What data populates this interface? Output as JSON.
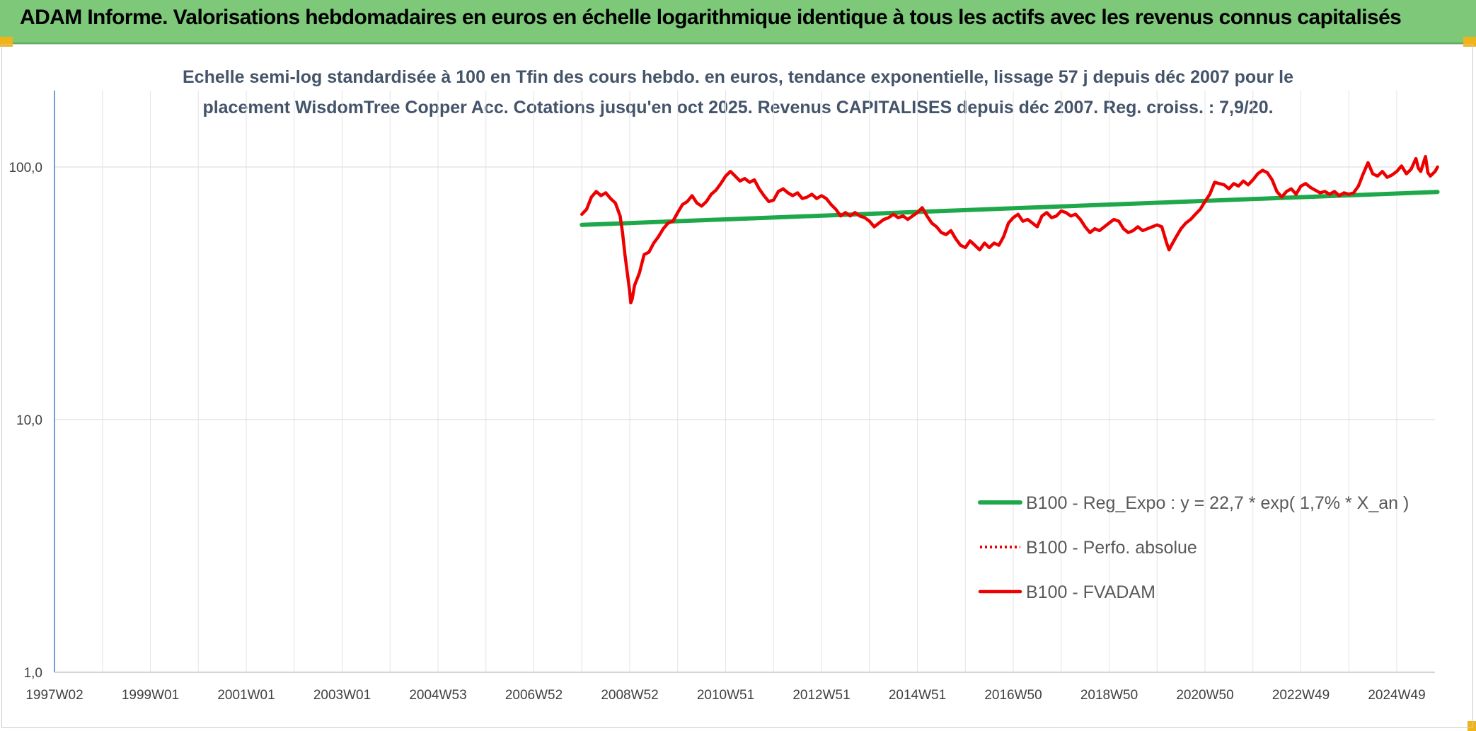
{
  "header": {
    "title": "ADAM Informe. Valorisations hebdomadaires en euros en échelle logarithmique identique à tous les actifs avec les revenus connus capitalisés"
  },
  "colors": {
    "banner": "#7ec87a",
    "accent_corner": "#f0b418",
    "fvadam": "#ee0000",
    "reg_expo": "#1ea84a",
    "perfo": "#ee0000",
    "subtitle": "#44546a"
  },
  "chart_data": {
    "type": "line",
    "title_line1": "Echelle semi-log standardisée à 100 en Tfin des cours hebdo. en euros, tendance exponentielle, lissage 57 j depuis déc 2007 pour le",
    "title_line2": "placement WisdomTree Copper Acc. Cotations jusqu'en oct 2025. Revenus CAPITALISES depuis déc 2007. Reg. croiss. : 7,9/20.",
    "y_scale": "log",
    "ylim": [
      1,
      200
    ],
    "y_ticks": [
      {
        "value": 1,
        "label": "1,0"
      },
      {
        "value": 10,
        "label": "10,0"
      },
      {
        "value": 100,
        "label": "100,0"
      }
    ],
    "xlim": [
      1997.0,
      2025.85
    ],
    "x_ticks": [
      {
        "value": 1997.0,
        "label": "1997W02"
      },
      {
        "value": 1999.0,
        "label": "1999W01"
      },
      {
        "value": 2001.0,
        "label": "2001W01"
      },
      {
        "value": 2003.0,
        "label": "2003W01"
      },
      {
        "value": 2005.0,
        "label": "2004W53"
      },
      {
        "value": 2007.0,
        "label": "2006W52"
      },
      {
        "value": 2009.0,
        "label": "2008W52"
      },
      {
        "value": 2011.0,
        "label": "2010W51"
      },
      {
        "value": 2013.0,
        "label": "2012W51"
      },
      {
        "value": 2015.0,
        "label": "2014W51"
      },
      {
        "value": 2017.0,
        "label": "2016W50"
      },
      {
        "value": 2019.0,
        "label": "2018W50"
      },
      {
        "value": 2021.0,
        "label": "2020W50"
      },
      {
        "value": 2023.0,
        "label": "2022W49"
      },
      {
        "value": 2025.0,
        "label": "2024W49"
      }
    ],
    "grid": true,
    "legend_position": "bottom-right",
    "series": [
      {
        "name": "B100 - Reg_Expo : y = 22,7 * exp( 1,7% *  X_an )",
        "style": "solid-thick",
        "points": [
          [
            2008.0,
            59.0
          ],
          [
            2025.85,
            79.7
          ]
        ]
      },
      {
        "name": "B100 - Perfo. absolue",
        "style": "dotted",
        "points": []
      },
      {
        "name": "B100 - FVADAM",
        "style": "solid",
        "points": [
          [
            2008.0,
            65
          ],
          [
            2008.1,
            68
          ],
          [
            2008.2,
            76
          ],
          [
            2008.3,
            80
          ],
          [
            2008.4,
            77
          ],
          [
            2008.5,
            79
          ],
          [
            2008.6,
            75
          ],
          [
            2008.7,
            72
          ],
          [
            2008.8,
            64
          ],
          [
            2008.85,
            55
          ],
          [
            2008.9,
            45
          ],
          [
            2008.95,
            38
          ],
          [
            2009.0,
            32
          ],
          [
            2009.02,
            29
          ],
          [
            2009.05,
            30
          ],
          [
            2009.1,
            34
          ],
          [
            2009.2,
            38
          ],
          [
            2009.3,
            45
          ],
          [
            2009.4,
            46
          ],
          [
            2009.5,
            50
          ],
          [
            2009.6,
            53
          ],
          [
            2009.7,
            57
          ],
          [
            2009.8,
            60
          ],
          [
            2009.9,
            61
          ],
          [
            2010.0,
            66
          ],
          [
            2010.1,
            71
          ],
          [
            2010.2,
            73
          ],
          [
            2010.3,
            77
          ],
          [
            2010.4,
            72
          ],
          [
            2010.5,
            70
          ],
          [
            2010.6,
            73
          ],
          [
            2010.7,
            78
          ],
          [
            2010.8,
            81
          ],
          [
            2010.9,
            86
          ],
          [
            2011.0,
            92
          ],
          [
            2011.1,
            96
          ],
          [
            2011.2,
            92
          ],
          [
            2011.3,
            88
          ],
          [
            2011.4,
            90
          ],
          [
            2011.5,
            87
          ],
          [
            2011.6,
            89
          ],
          [
            2011.7,
            82
          ],
          [
            2011.8,
            77
          ],
          [
            2011.9,
            73
          ],
          [
            2012.0,
            74
          ],
          [
            2012.1,
            80
          ],
          [
            2012.2,
            82
          ],
          [
            2012.3,
            79
          ],
          [
            2012.4,
            77
          ],
          [
            2012.5,
            79
          ],
          [
            2012.6,
            75
          ],
          [
            2012.7,
            76
          ],
          [
            2012.8,
            78
          ],
          [
            2012.9,
            75
          ],
          [
            2013.0,
            77
          ],
          [
            2013.1,
            75
          ],
          [
            2013.2,
            71
          ],
          [
            2013.3,
            68
          ],
          [
            2013.4,
            64
          ],
          [
            2013.5,
            66
          ],
          [
            2013.6,
            64
          ],
          [
            2013.7,
            66
          ],
          [
            2013.8,
            64
          ],
          [
            2013.9,
            63
          ],
          [
            2014.0,
            61
          ],
          [
            2014.1,
            58
          ],
          [
            2014.2,
            60
          ],
          [
            2014.3,
            62
          ],
          [
            2014.4,
            63
          ],
          [
            2014.5,
            65
          ],
          [
            2014.6,
            63
          ],
          [
            2014.7,
            64
          ],
          [
            2014.8,
            62
          ],
          [
            2014.9,
            64
          ],
          [
            2015.0,
            66
          ],
          [
            2015.1,
            69
          ],
          [
            2015.2,
            64
          ],
          [
            2015.3,
            60
          ],
          [
            2015.4,
            58
          ],
          [
            2015.5,
            55
          ],
          [
            2015.6,
            54
          ],
          [
            2015.7,
            56
          ],
          [
            2015.8,
            52
          ],
          [
            2015.9,
            49
          ],
          [
            2016.0,
            48
          ],
          [
            2016.1,
            51
          ],
          [
            2016.2,
            49
          ],
          [
            2016.3,
            47
          ],
          [
            2016.4,
            50
          ],
          [
            2016.5,
            48
          ],
          [
            2016.6,
            50
          ],
          [
            2016.7,
            49
          ],
          [
            2016.8,
            53
          ],
          [
            2016.9,
            60
          ],
          [
            2017.0,
            63
          ],
          [
            2017.1,
            65
          ],
          [
            2017.2,
            61
          ],
          [
            2017.3,
            62
          ],
          [
            2017.4,
            60
          ],
          [
            2017.5,
            58
          ],
          [
            2017.6,
            64
          ],
          [
            2017.7,
            66
          ],
          [
            2017.8,
            63
          ],
          [
            2017.9,
            64
          ],
          [
            2018.0,
            67
          ],
          [
            2018.1,
            66
          ],
          [
            2018.2,
            64
          ],
          [
            2018.3,
            65
          ],
          [
            2018.4,
            62
          ],
          [
            2018.5,
            58
          ],
          [
            2018.6,
            55
          ],
          [
            2018.7,
            57
          ],
          [
            2018.8,
            56
          ],
          [
            2018.9,
            58
          ],
          [
            2019.0,
            60
          ],
          [
            2019.1,
            62
          ],
          [
            2019.2,
            61
          ],
          [
            2019.3,
            57
          ],
          [
            2019.4,
            55
          ],
          [
            2019.5,
            56
          ],
          [
            2019.6,
            58
          ],
          [
            2019.7,
            56
          ],
          [
            2019.8,
            57
          ],
          [
            2019.9,
            58
          ],
          [
            2020.0,
            59
          ],
          [
            2020.1,
            58
          ],
          [
            2020.2,
            50
          ],
          [
            2020.25,
            47
          ],
          [
            2020.3,
            49
          ],
          [
            2020.4,
            53
          ],
          [
            2020.5,
            57
          ],
          [
            2020.6,
            60
          ],
          [
            2020.7,
            62
          ],
          [
            2020.8,
            65
          ],
          [
            2020.9,
            68
          ],
          [
            2021.0,
            73
          ],
          [
            2021.1,
            78
          ],
          [
            2021.2,
            87
          ],
          [
            2021.3,
            86
          ],
          [
            2021.4,
            85
          ],
          [
            2021.5,
            82
          ],
          [
            2021.6,
            86
          ],
          [
            2021.7,
            84
          ],
          [
            2021.8,
            88
          ],
          [
            2021.9,
            85
          ],
          [
            2022.0,
            89
          ],
          [
            2022.1,
            94
          ],
          [
            2022.2,
            97
          ],
          [
            2022.3,
            95
          ],
          [
            2022.4,
            89
          ],
          [
            2022.5,
            80
          ],
          [
            2022.6,
            76
          ],
          [
            2022.7,
            80
          ],
          [
            2022.8,
            82
          ],
          [
            2022.9,
            78
          ],
          [
            2023.0,
            84
          ],
          [
            2023.1,
            86
          ],
          [
            2023.2,
            83
          ],
          [
            2023.3,
            81
          ],
          [
            2023.4,
            79
          ],
          [
            2023.5,
            80
          ],
          [
            2023.6,
            78
          ],
          [
            2023.7,
            80
          ],
          [
            2023.8,
            77
          ],
          [
            2023.9,
            79
          ],
          [
            2024.0,
            78
          ],
          [
            2024.1,
            79
          ],
          [
            2024.2,
            84
          ],
          [
            2024.3,
            94
          ],
          [
            2024.4,
            104
          ],
          [
            2024.5,
            94
          ],
          [
            2024.6,
            92
          ],
          [
            2024.7,
            96
          ],
          [
            2024.8,
            91
          ],
          [
            2024.9,
            93
          ],
          [
            2025.0,
            96
          ],
          [
            2025.1,
            101
          ],
          [
            2025.2,
            94
          ],
          [
            2025.3,
            98
          ],
          [
            2025.4,
            108
          ],
          [
            2025.45,
            99
          ],
          [
            2025.5,
            96
          ],
          [
            2025.6,
            110
          ],
          [
            2025.65,
            95
          ],
          [
            2025.7,
            92
          ],
          [
            2025.8,
            96
          ],
          [
            2025.85,
            100
          ]
        ]
      }
    ]
  }
}
